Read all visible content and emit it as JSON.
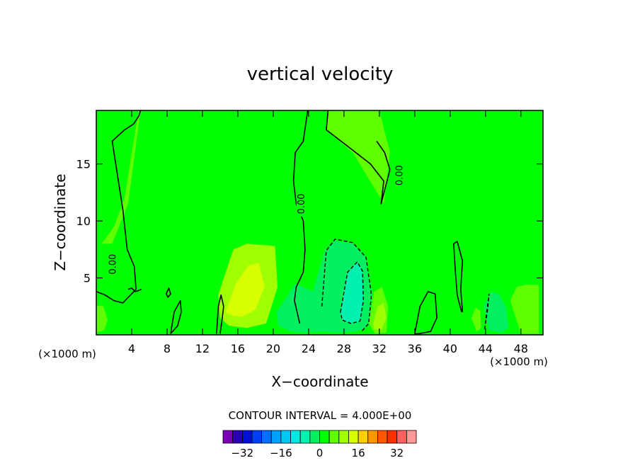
{
  "chart_data": {
    "type": "heatmap",
    "title": "vertical velocity",
    "xlabel": "X−coordinate",
    "ylabel": "Z−coordinate",
    "x_unit_left": "(×1000 m)",
    "x_unit_right": "(×1000 m)",
    "xlim": [
      0,
      50.5
    ],
    "ylim": [
      0,
      19.7
    ],
    "xticks": [
      4,
      8,
      12,
      16,
      20,
      24,
      28,
      32,
      36,
      40,
      44,
      48
    ],
    "yticks": [
      5,
      10,
      15
    ],
    "contour_interval_label": "CONTOUR INTERVAL = 4.000E+00",
    "zero_contour_label": "0.00",
    "colorbar": {
      "tick_labels": [
        "−32",
        "−16",
        "0",
        "16",
        "32"
      ],
      "tick_values": [
        -32,
        -16,
        0,
        16,
        32
      ],
      "levels": [
        -36,
        -32,
        -28,
        -24,
        -20,
        -16,
        -12,
        -8,
        -4,
        0,
        4,
        8,
        12,
        16,
        20,
        24,
        28,
        32,
        36
      ],
      "colors": [
        "#7a00b8",
        "#2a00b0",
        "#0010d8",
        "#0040f0",
        "#0070ff",
        "#00a0ff",
        "#00c8f0",
        "#00e8e0",
        "#00f0b0",
        "#00f060",
        "#00ff00",
        "#60ff00",
        "#a0ff00",
        "#d8ff00",
        "#ffd000",
        "#ff9800",
        "#ff5800",
        "#ff3000",
        "#ff6060",
        "#ff9898"
      ]
    },
    "background_level_color": "#00ff00",
    "regions": [
      {
        "name": "weak-updraft-upper-left",
        "level": 4,
        "x": [
          1.8,
          3.6,
          5.0,
          4.8,
          4.0,
          3.2,
          2.0,
          0.6
        ],
        "y": [
          8.0,
          11.5,
          19.7,
          19.7,
          16.0,
          12.0,
          9.5,
          8.0
        ]
      },
      {
        "name": "updraft-12-20",
        "level": 8,
        "x": [
          14.2,
          15.5,
          17.0,
          18.8,
          20.2,
          20.5,
          19.2,
          17.0,
          15.0,
          14.0,
          13.8
        ],
        "y": [
          4.5,
          7.5,
          8.0,
          7.9,
          7.8,
          4.2,
          1.0,
          0.6,
          0.8,
          1.5,
          3.5
        ]
      },
      {
        "name": "updraft-core",
        "level": 12,
        "x": [
          14.6,
          15.8,
          17.2,
          18.4,
          19.0,
          18.0,
          16.5,
          15.4,
          14.6
        ],
        "y": [
          2.0,
          4.5,
          6.1,
          6.3,
          4.2,
          2.2,
          1.6,
          1.7,
          2.0
        ]
      },
      {
        "name": "downdraft-22-32",
        "level": -4,
        "x": [
          20.4,
          22.5,
          24.5,
          25.8,
          27.0,
          29.0,
          30.5,
          31.2,
          30.8,
          29.5,
          27.5,
          25.5,
          23.5,
          22.0,
          20.6
        ],
        "y": [
          2.0,
          4.5,
          3.8,
          7.4,
          8.3,
          8.0,
          6.8,
          3.5,
          0.8,
          0.3,
          0.2,
          0.3,
          0.2,
          0.3,
          0.8
        ]
      },
      {
        "name": "downdraft-core",
        "level": -8,
        "x": [
          27.6,
          28.4,
          29.5,
          30.1,
          30.2,
          29.8,
          28.8,
          27.8,
          27.5
        ],
        "y": [
          2.0,
          5.5,
          6.4,
          5.6,
          3.0,
          1.2,
          1.0,
          1.3,
          2.0
        ]
      },
      {
        "name": "upper-right-lobe",
        "level": 4,
        "x": [
          26.2,
          26.0,
          29.0,
          32.5,
          33.2,
          32.0,
          30.0,
          27.5,
          26.5
        ],
        "y": [
          19.7,
          18.0,
          16.0,
          11.5,
          16.0,
          19.7,
          19.7,
          19.7,
          19.7
        ]
      },
      {
        "name": "updraft-32",
        "level": 4,
        "x": [
          30.8,
          31.4,
          32.3,
          33.0,
          32.8,
          31.5,
          30.8
        ],
        "y": [
          1.0,
          3.8,
          4.2,
          2.5,
          0.2,
          0.1,
          1.0
        ]
      },
      {
        "name": "updraft-32-core",
        "level": 8,
        "x": [
          31.3,
          31.8,
          32.5,
          32.8,
          32.2,
          31.4,
          31.3
        ],
        "y": [
          1.0,
          2.5,
          2.8,
          1.5,
          0.4,
          0.5,
          1.0
        ]
      },
      {
        "name": "downdraft-44-46",
        "level": -4,
        "x": [
          43.8,
          44.6,
          45.5,
          46.3,
          46.6,
          45.8,
          44.4,
          43.8
        ],
        "y": [
          2.5,
          3.8,
          3.6,
          2.5,
          0.6,
          0.2,
          0.4,
          2.5
        ]
      },
      {
        "name": "updraft-48",
        "level": 4,
        "x": [
          46.8,
          47.5,
          48.6,
          50.0,
          50.0,
          48.0,
          46.8
        ],
        "y": [
          3.0,
          4.2,
          4.4,
          4.4,
          0.1,
          0.1,
          3.0
        ]
      },
      {
        "name": "updraft-41",
        "level": 4,
        "x": [
          42.4,
          42.9,
          43.4,
          43.5,
          43.0,
          42.4
        ],
        "y": [
          1.5,
          2.4,
          2.1,
          0.6,
          0.3,
          1.5
        ]
      },
      {
        "name": "updraft-left-edge",
        "level": 4,
        "x": [
          0.0,
          0.8,
          1.3,
          0.9,
          0.0
        ],
        "y": [
          2.6,
          2.5,
          1.3,
          0.4,
          0.2
        ]
      }
    ],
    "zero_contours": [
      {
        "x": [
          0.0,
          1.0,
          2.0,
          3.0,
          3.5,
          4.5,
          4.3,
          3.5,
          3.0,
          2.2,
          1.8,
          3.2,
          4.2,
          4.8,
          5.0
        ],
        "y": [
          3.8,
          3.5,
          3.0,
          2.8,
          3.2,
          4.0,
          6.0,
          7.5,
          11.0,
          15.0,
          17.0,
          18.0,
          18.5,
          19.2,
          19.7
        ]
      },
      {
        "x": [
          23.9,
          23.4,
          22.5,
          22.3,
          22.6,
          23.4,
          23.6,
          23.4,
          22.6,
          22.4,
          23.0
        ],
        "y": [
          19.7,
          17.0,
          16.0,
          13.5,
          11.5,
          10.0,
          7.5,
          5.5,
          4.2,
          3.0,
          1.0
        ]
      },
      {
        "x": [
          26.2,
          26.0,
          27.0,
          29.0,
          31.0,
          32.5,
          32.2,
          33.2,
          32.6,
          31.7
        ],
        "y": [
          19.7,
          18.0,
          17.4,
          16.2,
          15.0,
          13.5,
          11.5,
          14.5,
          16.0,
          17.0
        ]
      },
      {
        "x": [
          41.3,
          40.8,
          40.6,
          40.4,
          40.8,
          41.4,
          41.2,
          41.4
        ],
        "y": [
          2.0,
          3.5,
          5.5,
          8.0,
          8.2,
          6.5,
          4.0,
          2.0
        ]
      },
      {
        "x": [
          13.6,
          13.8,
          14.1,
          14.4,
          14.2,
          14.0
        ],
        "y": [
          0.1,
          2.5,
          3.5,
          2.5,
          1.2,
          0.1
        ]
      },
      {
        "x": [
          8.4,
          8.8,
          9.5,
          9.6,
          9.2,
          8.4
        ],
        "y": [
          0.1,
          2.0,
          3.0,
          2.0,
          0.8,
          0.1
        ]
      },
      {
        "x": [
          36.0,
          36.6,
          37.5,
          38.3,
          38.5,
          37.8,
          36.5,
          36.0
        ],
        "y": [
          0.1,
          2.5,
          3.8,
          3.6,
          1.5,
          0.3,
          0.1,
          0.1
        ]
      },
      {
        "x": [
          3.6,
          4.0,
          4.4,
          4.8,
          5.1
        ],
        "y": [
          4.0,
          4.1,
          3.8,
          3.9,
          4.0
        ]
      },
      {
        "x": [
          7.9,
          8.2,
          8.4,
          8.1,
          7.9
        ],
        "y": [
          3.6,
          4.1,
          3.6,
          3.3,
          3.6
        ]
      }
    ],
    "dashed_contours": [
      {
        "x": [
          25.5,
          26.0,
          27.0,
          29.0,
          30.5,
          31.1,
          30.8,
          30.0
        ],
        "y": [
          2.5,
          7.4,
          8.4,
          8.1,
          6.8,
          3.5,
          1.0,
          0.3
        ]
      },
      {
        "x": [
          27.6,
          28.4,
          29.5,
          30.1,
          30.2,
          29.8,
          28.8,
          27.8,
          27.6
        ],
        "y": [
          2.0,
          5.5,
          6.4,
          5.6,
          3.0,
          1.2,
          1.0,
          1.3,
          2.0
        ]
      },
      {
        "x": [
          43.9,
          44.1,
          44.4,
          44.2,
          43.9
        ],
        "y": [
          0.5,
          1.8,
          3.6,
          2.0,
          0.5
        ]
      }
    ]
  }
}
